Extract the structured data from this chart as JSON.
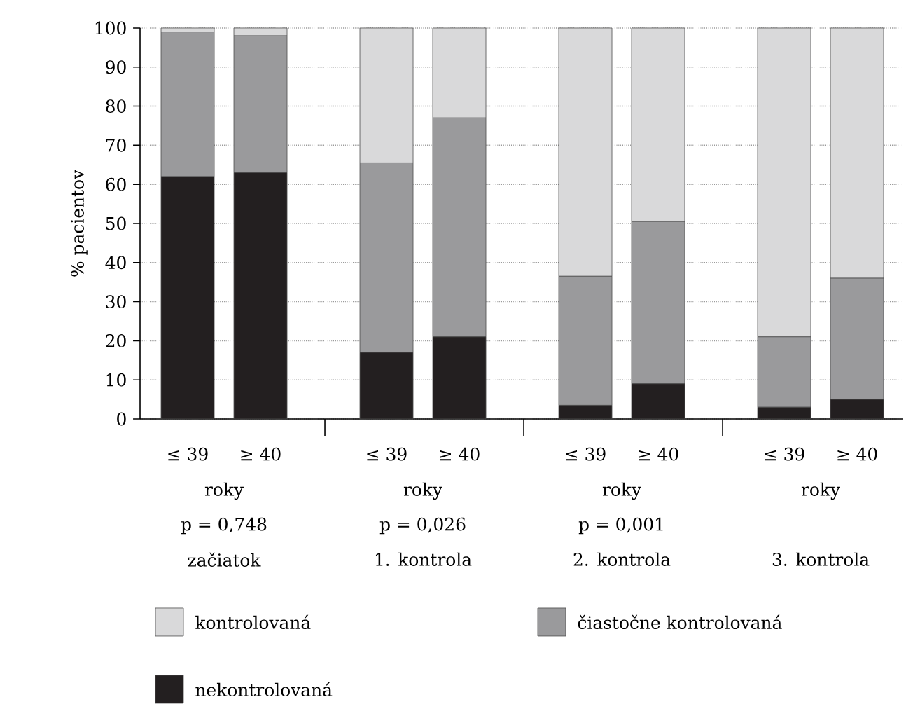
{
  "chart_data": {
    "type": "bar",
    "stacked": true,
    "ylabel": "% pacientov",
    "categories": [
      "≤ 39",
      "≥ 40",
      "≤ 39",
      "≥ 40",
      "≤ 39",
      "≥ 40",
      "≤ 39",
      "≥ 40"
    ],
    "series": [
      {
        "name": "nekontrolovaná",
        "color": "#231f20",
        "values": [
          62,
          63,
          17,
          21,
          3.5,
          9,
          3,
          5
        ]
      },
      {
        "name": "čiastočne kontrolovaná",
        "color": "#9a9a9c",
        "values": [
          37,
          35,
          48.5,
          56,
          33,
          41.5,
          18,
          31
        ]
      },
      {
        "name": "kontrolovaná",
        "color": "#d9d9da",
        "values": [
          1,
          2,
          34.5,
          23,
          63.5,
          49.5,
          79,
          64
        ]
      }
    ],
    "ylim": [
      0,
      100
    ],
    "yticks": [
      0,
      10,
      20,
      30,
      40,
      50,
      60,
      70,
      80,
      90,
      100
    ],
    "grid": "y",
    "legend": "bottom",
    "annotations": [
      "roky",
      "roky",
      "roky",
      "roky",
      "p = 0,748",
      "p = 0,026",
      "p = 0,001",
      "začiatok",
      "1. kontrola",
      "2. kontrola",
      "3. kontrola"
    ]
  }
}
